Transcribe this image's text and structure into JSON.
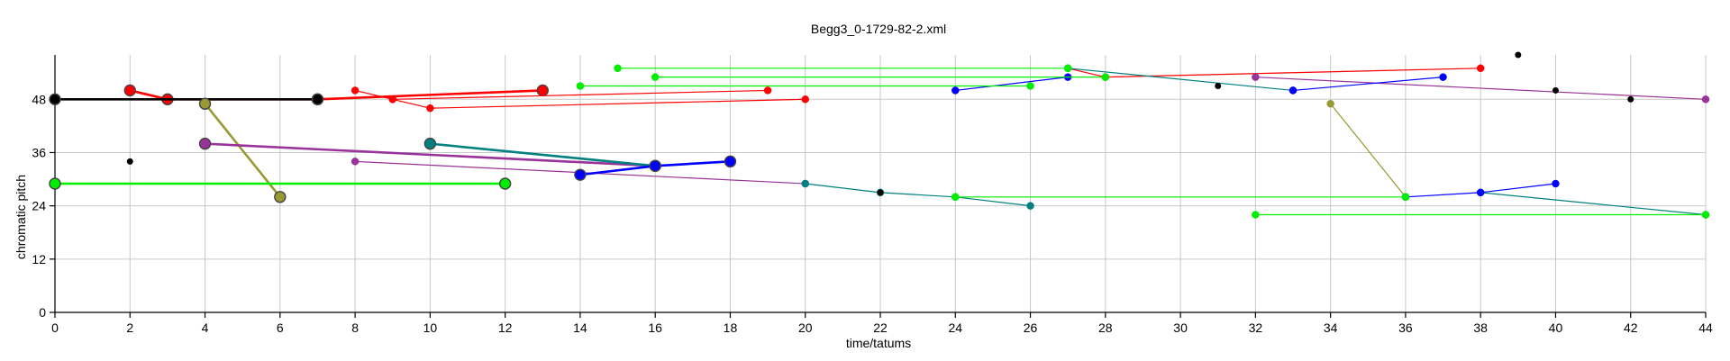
{
  "chart_data": {
    "type": "scatter",
    "title": "Begg3_0-1729-82-2.xml",
    "xlabel": "time/tatums",
    "ylabel": "chromatic pitch",
    "xlim": [
      0,
      44
    ],
    "ylim": [
      0,
      58
    ],
    "xticks": [
      0,
      2,
      4,
      6,
      8,
      10,
      12,
      14,
      16,
      18,
      20,
      22,
      24,
      26,
      28,
      30,
      32,
      34,
      36,
      38,
      40,
      42,
      44
    ],
    "yticks": [
      0,
      12,
      24,
      36,
      48
    ],
    "grid": true,
    "colors": {
      "red": "#ff0000",
      "green": "#00ee00",
      "blue": "#0000ff",
      "teal": "#008080",
      "purple": "#993399",
      "olive": "#999933",
      "black": "#000000"
    },
    "series": [
      {
        "color": "red",
        "points": [
          [
            2,
            50
          ],
          [
            3,
            48
          ],
          [
            7,
            48
          ],
          [
            13,
            50
          ]
        ],
        "size": "large"
      },
      {
        "color": "red",
        "points": [
          [
            8,
            50
          ],
          [
            9,
            48
          ],
          [
            10,
            46
          ],
          [
            20,
            48
          ]
        ],
        "size": "small"
      },
      {
        "color": "red",
        "points": [
          [
            9,
            48
          ],
          [
            19,
            50
          ]
        ],
        "size": "small"
      },
      {
        "color": "red",
        "points": [
          [
            27,
            55
          ],
          [
            28,
            53
          ],
          [
            38,
            55
          ]
        ],
        "size": "small"
      },
      {
        "color": "black",
        "points": [
          [
            0,
            48
          ],
          [
            7,
            48
          ]
        ],
        "size": "large"
      },
      {
        "color": "olive",
        "points": [
          [
            4,
            47
          ],
          [
            6,
            26
          ]
        ],
        "size": "large"
      },
      {
        "color": "olive",
        "points": [
          [
            34,
            47
          ],
          [
            36,
            26
          ]
        ],
        "size": "small"
      },
      {
        "color": "purple",
        "points": [
          [
            4,
            38
          ],
          [
            16,
            33
          ]
        ],
        "size": "large"
      },
      {
        "color": "purple",
        "points": [
          [
            8,
            34
          ],
          [
            20,
            29
          ]
        ],
        "size": "small"
      },
      {
        "color": "purple",
        "points": [
          [
            32,
            53
          ],
          [
            44,
            48
          ]
        ],
        "size": "small"
      },
      {
        "color": "teal",
        "points": [
          [
            10,
            38
          ],
          [
            16,
            33
          ]
        ],
        "size": "large"
      },
      {
        "color": "teal",
        "points": [
          [
            20,
            29
          ],
          [
            22,
            27
          ],
          [
            24,
            26
          ],
          [
            26,
            24
          ]
        ],
        "size": "small"
      },
      {
        "color": "teal",
        "points": [
          [
            27,
            55
          ],
          [
            33,
            50
          ]
        ],
        "size": "small"
      },
      {
        "color": "teal",
        "points": [
          [
            38,
            27
          ],
          [
            44,
            22
          ]
        ],
        "size": "small"
      },
      {
        "color": "blue",
        "points": [
          [
            14,
            31
          ],
          [
            16,
            33
          ],
          [
            18,
            34
          ]
        ],
        "size": "large"
      },
      {
        "color": "blue",
        "points": [
          [
            24,
            50
          ],
          [
            27,
            53
          ]
        ],
        "size": "small"
      },
      {
        "color": "blue",
        "points": [
          [
            33,
            50
          ],
          [
            37,
            53
          ]
        ],
        "size": "small"
      },
      {
        "color": "blue",
        "points": [
          [
            36,
            26
          ],
          [
            38,
            27
          ],
          [
            40,
            29
          ]
        ],
        "size": "small"
      },
      {
        "color": "green",
        "points": [
          [
            0,
            29
          ],
          [
            12,
            29
          ]
        ],
        "size": "large"
      },
      {
        "color": "green",
        "points": [
          [
            14,
            51
          ],
          [
            26,
            51
          ]
        ],
        "size": "small"
      },
      {
        "color": "green",
        "points": [
          [
            15,
            55
          ],
          [
            27,
            55
          ]
        ],
        "size": "small"
      },
      {
        "color": "green",
        "points": [
          [
            16,
            53
          ],
          [
            28,
            53
          ]
        ],
        "size": "small"
      },
      {
        "color": "green",
        "points": [
          [
            24,
            26
          ],
          [
            36,
            26
          ]
        ],
        "size": "small"
      },
      {
        "color": "green",
        "points": [
          [
            32,
            22
          ],
          [
            44,
            22
          ]
        ],
        "size": "small"
      }
    ],
    "points": [
      {
        "x": 2,
        "y": 34,
        "color": "black"
      },
      {
        "x": 26,
        "y": 24,
        "color": "teal"
      },
      {
        "x": 31,
        "y": 51,
        "color": "black"
      },
      {
        "x": 39,
        "y": 58,
        "color": "black"
      },
      {
        "x": 40,
        "y": 50,
        "color": "black"
      },
      {
        "x": 42,
        "y": 48,
        "color": "black"
      },
      {
        "x": 22,
        "y": 27,
        "color": "black"
      }
    ]
  }
}
